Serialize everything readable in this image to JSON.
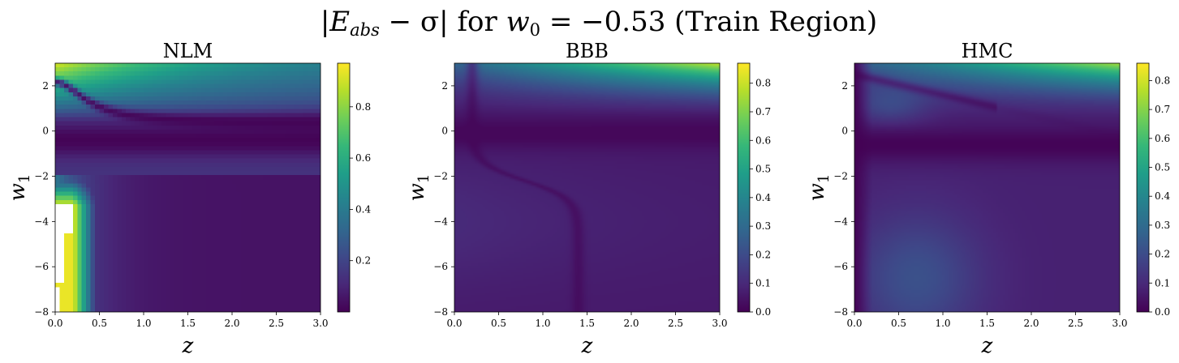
{
  "figure": {
    "suptitle": "|E_abs − σ| for w_0 = −0.53 (Train Region)",
    "suptitle_parts": {
      "open_bar": "|",
      "e": "E",
      "e_sub": "abs",
      "minus_sigma": " − σ",
      "close_bar": "|",
      "for_text": " for ",
      "w": "w",
      "w_sub": "0",
      "equals": " = −0.53 (Train Region)"
    },
    "colormap": "viridis",
    "colormap_stops": [
      "#440154",
      "#482878",
      "#3e4989",
      "#31688e",
      "#26828e",
      "#1f9e89",
      "#35b779",
      "#6ece58",
      "#b5de2b",
      "#fde725"
    ]
  },
  "chart_data": [
    {
      "type": "heatmap",
      "title": "NLM",
      "xlabel": "z",
      "ylabel": "w",
      "ylabel_sub": "1",
      "xlim": [
        0.0,
        3.0
      ],
      "ylim": [
        -8,
        3
      ],
      "x_ticks": [
        "0.0",
        "0.5",
        "1.0",
        "1.5",
        "2.0",
        "2.5",
        "3.0"
      ],
      "y_ticks": [
        "−8",
        "−6",
        "−4",
        "−2",
        "0",
        "2"
      ],
      "colorbar_range": [
        0.0,
        0.97
      ],
      "colorbar_ticks": [
        "0.2",
        "0.4",
        "0.6",
        "0.8"
      ],
      "pixelated": true,
      "has_missing_region": true
    },
    {
      "type": "heatmap",
      "title": "BBB",
      "xlabel": "z",
      "ylabel": "w",
      "ylabel_sub": "1",
      "xlim": [
        0.0,
        3.0
      ],
      "ylim": [
        -8,
        3
      ],
      "x_ticks": [
        "0.0",
        "0.5",
        "1.0",
        "1.5",
        "2.0",
        "2.5",
        "3.0"
      ],
      "y_ticks": [
        "−8",
        "−6",
        "−4",
        "−2",
        "0",
        "2"
      ],
      "colorbar_range": [
        0.0,
        0.87
      ],
      "colorbar_ticks": [
        "0.0",
        "0.1",
        "0.2",
        "0.3",
        "0.4",
        "0.5",
        "0.6",
        "0.7",
        "0.8"
      ],
      "pixelated": false,
      "has_missing_region": false
    },
    {
      "type": "heatmap",
      "title": "HMC",
      "xlabel": "z",
      "ylabel": "w",
      "ylabel_sub": "1",
      "xlim": [
        0.0,
        3.0
      ],
      "ylim": [
        -8,
        3
      ],
      "x_ticks": [
        "0.0",
        "0.5",
        "1.0",
        "1.5",
        "2.0",
        "2.5",
        "3.0"
      ],
      "y_ticks": [
        "−8",
        "−6",
        "−4",
        "−2",
        "0",
        "2"
      ],
      "colorbar_range": [
        0.0,
        0.86
      ],
      "colorbar_ticks": [
        "0.0",
        "0.1",
        "0.2",
        "0.3",
        "0.4",
        "0.5",
        "0.6",
        "0.7",
        "0.8"
      ],
      "pixelated": false,
      "has_missing_region": false
    }
  ]
}
